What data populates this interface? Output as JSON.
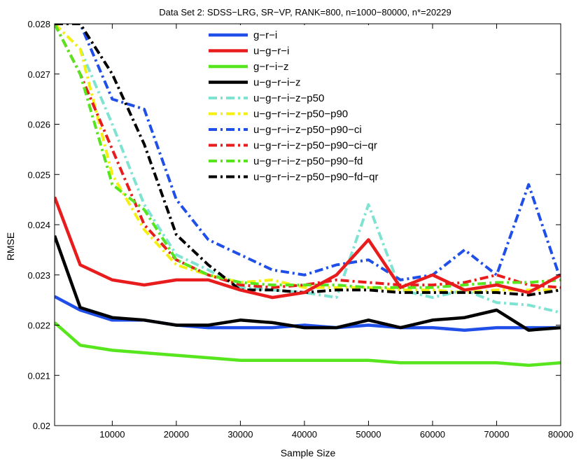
{
  "chart_data": {
    "type": "line",
    "title": "Data Set 2: SDSS−LRG, SR−VP, RANK=800,  n=1000−80000, n*=20229",
    "xlabel": "Sample Size",
    "ylabel": "RMSE",
    "xlim": [
      1000,
      80000
    ],
    "ylim": [
      0.02,
      0.028
    ],
    "xticks": [
      10000,
      20000,
      30000,
      40000,
      50000,
      60000,
      70000,
      80000
    ],
    "yticks": [
      0.02,
      0.021,
      0.022,
      0.023,
      0.024,
      0.025,
      0.026,
      0.027,
      0.028
    ],
    "xtick_labels": [
      "10000",
      "20000",
      "30000",
      "40000",
      "50000",
      "60000",
      "70000",
      "80000"
    ],
    "ytick_labels": [
      "0.02",
      "0.021",
      "0.022",
      "0.023",
      "0.024",
      "0.025",
      "0.026",
      "0.027",
      "0.028"
    ],
    "grid": false,
    "legend_position": "top-center",
    "x": [
      1000,
      5000,
      10000,
      15000,
      20000,
      25000,
      30000,
      35000,
      40000,
      45000,
      50000,
      55000,
      60000,
      65000,
      70000,
      75000,
      80000
    ],
    "series": [
      {
        "name": "g−r−i",
        "color": "#1f4fe8",
        "dash": "solid",
        "values": [
          0.02257,
          0.0223,
          0.0221,
          0.0221,
          0.022,
          0.02195,
          0.02195,
          0.02195,
          0.022,
          0.02195,
          0.022,
          0.02195,
          0.02195,
          0.0219,
          0.02195,
          0.02195,
          0.02195
        ]
      },
      {
        "name": "u−g−r−i",
        "color": "#e81c1c",
        "dash": "solid",
        "values": [
          0.02455,
          0.0232,
          0.0229,
          0.0228,
          0.0229,
          0.0229,
          0.0227,
          0.02255,
          0.02265,
          0.023,
          0.0237,
          0.02275,
          0.023,
          0.0227,
          0.0228,
          0.02265,
          0.023
        ]
      },
      {
        "name": "g−r−i−z",
        "color": "#57e61e",
        "dash": "solid",
        "values": [
          0.02205,
          0.0216,
          0.0215,
          0.02145,
          0.0214,
          0.02135,
          0.0213,
          0.0213,
          0.0213,
          0.0213,
          0.0213,
          0.02125,
          0.02125,
          0.02125,
          0.02125,
          0.0212,
          0.02125
        ]
      },
      {
        "name": "u−g−r−i−z",
        "color": "#000000",
        "dash": "solid",
        "values": [
          0.02378,
          0.02235,
          0.02215,
          0.0221,
          0.022,
          0.022,
          0.0221,
          0.02205,
          0.02195,
          0.02195,
          0.0221,
          0.02195,
          0.0221,
          0.02215,
          0.0223,
          0.0219,
          0.02195
        ]
      },
      {
        "name": "u−g−r−i−z−p50",
        "color": "#7fe3d2",
        "dash": "dashdot",
        "values": [
          0.028,
          0.0275,
          0.026,
          0.0244,
          0.0234,
          0.0231,
          0.02275,
          0.0227,
          0.02265,
          0.02255,
          0.0244,
          0.0227,
          0.02255,
          0.0227,
          0.02245,
          0.0224,
          0.02225
        ]
      },
      {
        "name": "u−g−r−i−z−p50−p90",
        "color": "#f5f011",
        "dash": "dashdot",
        "values": [
          0.028,
          0.0275,
          0.025,
          0.0239,
          0.0232,
          0.023,
          0.02285,
          0.0229,
          0.02275,
          0.02275,
          0.02275,
          0.0227,
          0.0227,
          0.02265,
          0.0227,
          0.0227,
          0.0227
        ]
      },
      {
        "name": "u−g−r−i−z−p50−p90−ci",
        "color": "#1f4fe8",
        "dash": "dashdot",
        "values": [
          0.028,
          0.028,
          0.0265,
          0.0263,
          0.0245,
          0.0237,
          0.0234,
          0.0231,
          0.023,
          0.0232,
          0.0233,
          0.0229,
          0.023,
          0.0235,
          0.023,
          0.0248,
          0.0229
        ]
      },
      {
        "name": "u−g−r−i−z−p50−p90−ci−qr",
        "color": "#e81c1c",
        "dash": "dashdot",
        "values": [
          0.028,
          0.027,
          0.0255,
          0.024,
          0.0233,
          0.023,
          0.0228,
          0.02275,
          0.0228,
          0.0229,
          0.02285,
          0.0228,
          0.0228,
          0.02285,
          0.023,
          0.0228,
          0.02275
        ]
      },
      {
        "name": "u−g−r−i−z−p50−p90−fd",
        "color": "#57e61e",
        "dash": "dashdot",
        "values": [
          0.028,
          0.027,
          0.0248,
          0.0243,
          0.0233,
          0.023,
          0.02285,
          0.0228,
          0.0228,
          0.0228,
          0.02275,
          0.02275,
          0.02275,
          0.0228,
          0.02285,
          0.02285,
          0.0229
        ]
      },
      {
        "name": "u−g−r−i−z−p50−p90−fd−qr",
        "color": "#000000",
        "dash": "dashdot",
        "values": [
          0.028,
          0.028,
          0.027,
          0.0256,
          0.0238,
          0.0232,
          0.0227,
          0.0227,
          0.02265,
          0.0227,
          0.0227,
          0.02265,
          0.02265,
          0.02265,
          0.02265,
          0.0226,
          0.0227
        ]
      }
    ]
  }
}
